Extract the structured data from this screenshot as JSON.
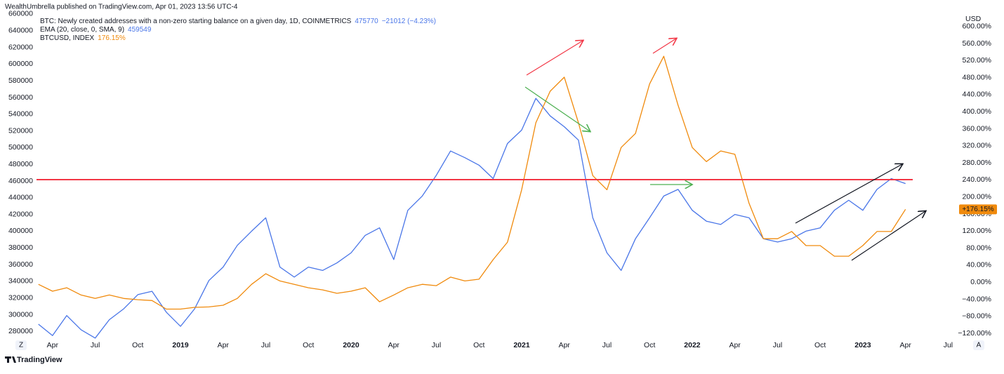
{
  "published": "WealthUmbrella published on TradingView.com, Apr 01, 2023 13:56 UTC-4",
  "footer": "TradingView",
  "buttons": [
    "Z",
    "A"
  ],
  "chart_data": {
    "type": "line",
    "legend_lines": [
      {
        "name": "BTC: Newly created addresses with a non-zero starting balance on a given day, 1D, COINMETRICS",
        "value": "475770",
        "change": "−21012 (−4.23%)"
      },
      {
        "name": "EMA (20, close, 0, SMA, 9)",
        "value": "459549"
      },
      {
        "name": "BTCUSD, INDEX",
        "value": "176.15%"
      }
    ],
    "y2_title": "USD",
    "last_label": "+176.15%",
    "x": [
      2018.167,
      2018.25,
      2018.333,
      2018.417,
      2018.5,
      2018.583,
      2018.667,
      2018.75,
      2018.833,
      2018.917,
      2019,
      2019.083,
      2019.167,
      2019.25,
      2019.333,
      2019.417,
      2019.5,
      2019.583,
      2019.667,
      2019.75,
      2019.833,
      2019.917,
      2020,
      2020.083,
      2020.167,
      2020.25,
      2020.333,
      2020.417,
      2020.5,
      2020.583,
      2020.667,
      2020.75,
      2020.833,
      2020.917,
      2021,
      2021.083,
      2021.167,
      2021.25,
      2021.333,
      2021.417,
      2021.5,
      2021.583,
      2021.667,
      2021.75,
      2021.833,
      2021.917,
      2022,
      2022.083,
      2022.167,
      2022.25,
      2022.333,
      2022.417,
      2022.5,
      2022.583,
      2022.667,
      2022.75,
      2022.833,
      2022.917,
      2023,
      2023.083,
      2023.167,
      2023.25
    ],
    "series": [
      {
        "name": "BTC: Newly created addresses with a non-zero starting balance on a given day, 1D, COINMETRICS",
        "color": "#4a76e8",
        "values": [
          288600,
          275000,
          299000,
          282000,
          272000,
          294000,
          307000,
          324000,
          328000,
          303000,
          286000,
          307000,
          341000,
          357000,
          383000,
          400000,
          416000,
          357000,
          345000,
          357000,
          353000,
          362000,
          374000,
          395000,
          404000,
          366000,
          425000,
          442000,
          467000,
          496000,
          488000,
          479000,
          463000,
          505000,
          521000,
          559000,
          538000,
          525000,
          509000,
          416000,
          374000,
          353000,
          391000,
          416000,
          442000,
          450000,
          425000,
          412000,
          408000,
          420000,
          416000,
          391000,
          387000,
          391000,
          400000,
          404000,
          425000,
          437000,
          425000,
          450000,
          463000,
          457000
        ]
      },
      {
        "name": "BTCUSD, INDEX",
        "color": "#f08a0c",
        "axis": "y2",
        "values": [
          -5,
          -21,
          -13,
          -30,
          -38,
          -30,
          -38,
          -41,
          -43,
          -63,
          -63,
          -59,
          -58,
          -54,
          -38,
          -5,
          20,
          3,
          -5,
          -13,
          -18,
          -26,
          -21,
          -13,
          -46,
          -30,
          -13,
          -5,
          -8,
          12,
          3,
          7,
          53,
          94,
          217,
          374,
          448,
          481,
          374,
          250,
          217,
          316,
          349,
          465,
          530,
          415,
          316,
          283,
          308,
          300,
          185,
          102,
          102,
          119,
          86,
          86,
          61,
          61,
          86,
          119,
          119,
          171
        ]
      }
    ],
    "xlim": [
      2018.156,
      2023.56
    ],
    "xticks": [
      {
        "value": 2018.25,
        "label": "Apr"
      },
      {
        "value": 2018.5,
        "label": "Jul"
      },
      {
        "value": 2018.75,
        "label": "Oct"
      },
      2019,
      {
        "value": 2019.25,
        "label": "Apr"
      },
      {
        "value": 2019.5,
        "label": "Jul"
      },
      {
        "value": 2019.75,
        "label": "Oct"
      },
      2020,
      {
        "value": 2020.25,
        "label": "Apr"
      },
      {
        "value": 2020.5,
        "label": "Jul"
      },
      {
        "value": 2020.75,
        "label": "Oct"
      },
      2021,
      {
        "value": 2021.25,
        "label": "Apr"
      },
      {
        "value": 2021.5,
        "label": "Jul"
      },
      {
        "value": 2021.75,
        "label": "Oct"
      },
      2022,
      {
        "value": 2022.25,
        "label": "Apr"
      },
      {
        "value": 2022.5,
        "label": "Jul"
      },
      {
        "value": 2022.75,
        "label": "Oct"
      },
      2023,
      {
        "value": 2023.25,
        "label": "Apr"
      },
      {
        "value": 2023.5,
        "label": "Jul"
      }
    ],
    "ylim": [
      271000,
      665000
    ],
    "yticks": [
      280000,
      300000,
      320000,
      340000,
      360000,
      380000,
      400000,
      420000,
      440000,
      460000,
      480000,
      500000,
      520000,
      540000,
      560000,
      580000,
      600000,
      620000,
      640000,
      660000
    ],
    "y2lim": [
      -133,
      639
    ],
    "y2ticks": [
      {
        "value": -120,
        "label": "−120.00%"
      },
      {
        "value": -80,
        "label": "−80.00%"
      },
      {
        "value": -40,
        "label": "−40.00%"
      },
      {
        "value": 0,
        "label": "0.00%"
      },
      {
        "value": 40,
        "label": "40.00%"
      },
      {
        "value": 80,
        "label": "80.00%"
      },
      {
        "value": 120,
        "label": "120.00%"
      },
      {
        "value": 160,
        "label": "160.00%"
      },
      {
        "value": 200,
        "label": "200.00%"
      },
      {
        "value": 240,
        "label": "240.00%"
      },
      {
        "value": 280,
        "label": "280.00%"
      },
      {
        "value": 320,
        "label": "320.00%"
      },
      {
        "value": 360,
        "label": "360.00%"
      },
      {
        "value": 400,
        "label": "400.00%"
      },
      {
        "value": 440,
        "label": "440.00%"
      },
      {
        "value": 480,
        "label": "480.00%"
      },
      {
        "value": 520,
        "label": "520.00%"
      },
      {
        "value": 560,
        "label": "560.00%"
      },
      {
        "value": 600,
        "label": "600.00%"
      }
    ],
    "grid": false
  }
}
